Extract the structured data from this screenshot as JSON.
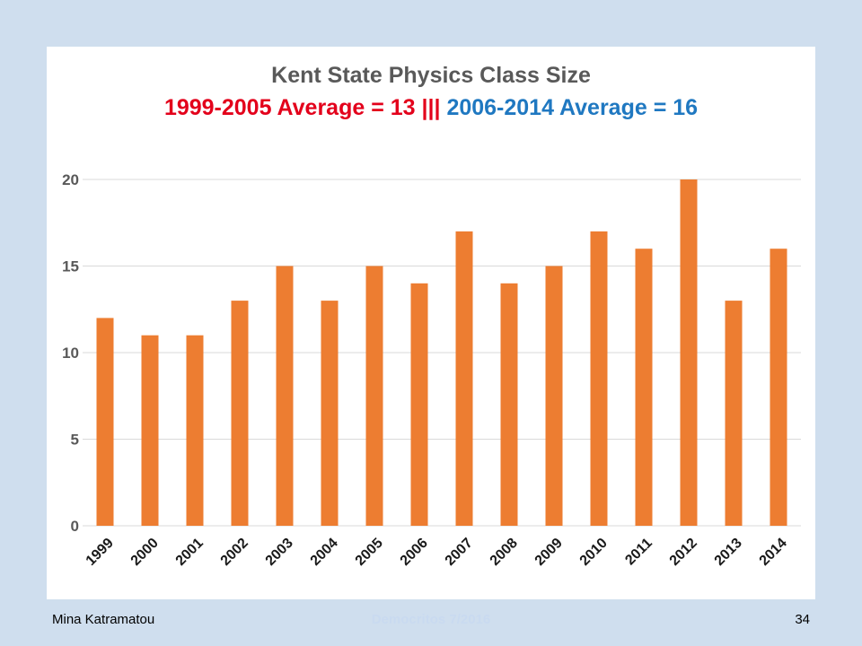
{
  "title_line1": "Kent State Physics Class Size",
  "title_line2_part1": "1999-2005 Average = 13 |||",
  "title_line2_part2": "2006-2014 Average = 16",
  "footer": {
    "left": "Mina Katramatou",
    "center": "Democritos 7/2016",
    "right": "34"
  },
  "colors": {
    "bar": "#ed7d31",
    "title_red": "#e3001b",
    "title_blue": "#1f78c1",
    "background": "#cfdeee"
  },
  "chart_data": {
    "type": "bar",
    "title": "Kent State Physics Class Size",
    "subtitle": "1999-2005 Average = 13 ||| 2006-2014 Average = 16",
    "categories": [
      "1999",
      "2000",
      "2001",
      "2002",
      "2003",
      "2004",
      "2005",
      "2006",
      "2007",
      "2008",
      "2009",
      "2010",
      "2011",
      "2012",
      "2013",
      "2014"
    ],
    "values": [
      12,
      11,
      11,
      13,
      15,
      13,
      15,
      14,
      17,
      14,
      15,
      17,
      16,
      20,
      13,
      16
    ],
    "yticks": [
      "0",
      "5",
      "10",
      "15",
      "20"
    ],
    "ylim": [
      0,
      22
    ],
    "xlabel": "",
    "ylabel": "",
    "grid": true
  }
}
